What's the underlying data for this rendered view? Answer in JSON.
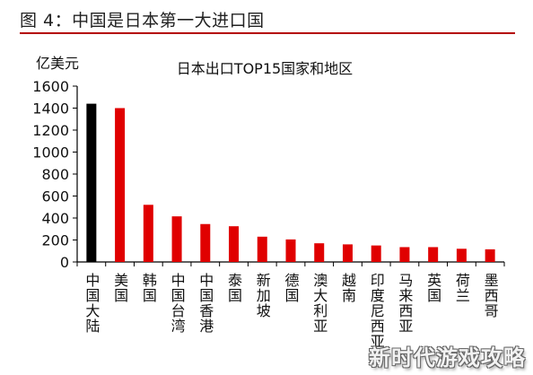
{
  "figure": {
    "caption": "图 4：中国是日本第一大进口国",
    "accent_color": "#b40000"
  },
  "watermark": "新时代游戏攻略",
  "chart_data": {
    "type": "bar",
    "title": "日本出口TOP15国家和地区",
    "ylabel": "亿美元",
    "xlabel": "",
    "ylim": [
      0,
      1600
    ],
    "yticks": [
      0,
      200,
      400,
      600,
      800,
      1000,
      1200,
      1400,
      1600
    ],
    "grid": false,
    "categories": [
      "中国大陆",
      "美国",
      "韩国",
      "中国台湾",
      "中国香港",
      "泰国",
      "新加坡",
      "德国",
      "澳大利亚",
      "越南",
      "印度尼西亚",
      "马来西亚",
      "英国",
      "荷兰",
      "墨西哥"
    ],
    "values": [
      1440,
      1400,
      520,
      415,
      345,
      325,
      230,
      205,
      170,
      160,
      150,
      135,
      135,
      120,
      115
    ],
    "colors": [
      "#000000",
      "#e00000",
      "#e00000",
      "#e00000",
      "#e00000",
      "#e00000",
      "#e00000",
      "#e00000",
      "#e00000",
      "#e00000",
      "#e00000",
      "#e00000",
      "#e00000",
      "#e00000",
      "#e00000"
    ]
  }
}
